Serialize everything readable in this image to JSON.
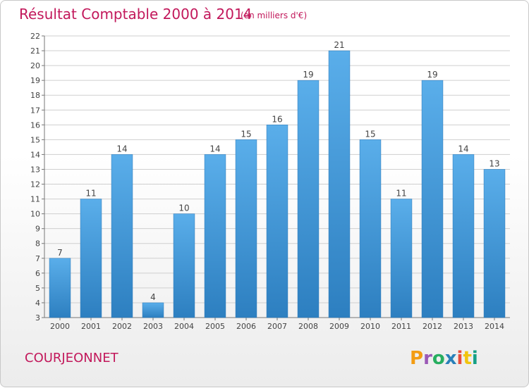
{
  "header": {
    "title": "Résultat Comptable 2000 à 2014",
    "subtitle": "(en milliers d'€)"
  },
  "footer": {
    "place": "COURJEONNET",
    "brand": "Proxiti",
    "brand_colors": [
      "#f39c12",
      "#9b59b6",
      "#27ae60",
      "#2980b9",
      "#e74c3c",
      "#f1c40f",
      "#16a085"
    ]
  },
  "chart_data": {
    "type": "bar",
    "title": "Résultat Comptable 2000 à 2014",
    "subtitle": "(en milliers d'€)",
    "categories": [
      "2000",
      "2001",
      "2002",
      "2003",
      "2004",
      "2005",
      "2006",
      "2007",
      "2008",
      "2009",
      "2010",
      "2011",
      "2012",
      "2013",
      "2014"
    ],
    "values": [
      7,
      11,
      14,
      4,
      10,
      14,
      15,
      16,
      19,
      21,
      15,
      11,
      19,
      14,
      13
    ],
    "ylim": [
      3,
      22
    ],
    "yticks": [
      3,
      4,
      5,
      6,
      7,
      8,
      9,
      10,
      11,
      12,
      13,
      14,
      15,
      16,
      17,
      18,
      19,
      20,
      21,
      22
    ],
    "grid": true,
    "bar_color": "#3b8fd3",
    "grid_color": "#cfcfcf"
  }
}
